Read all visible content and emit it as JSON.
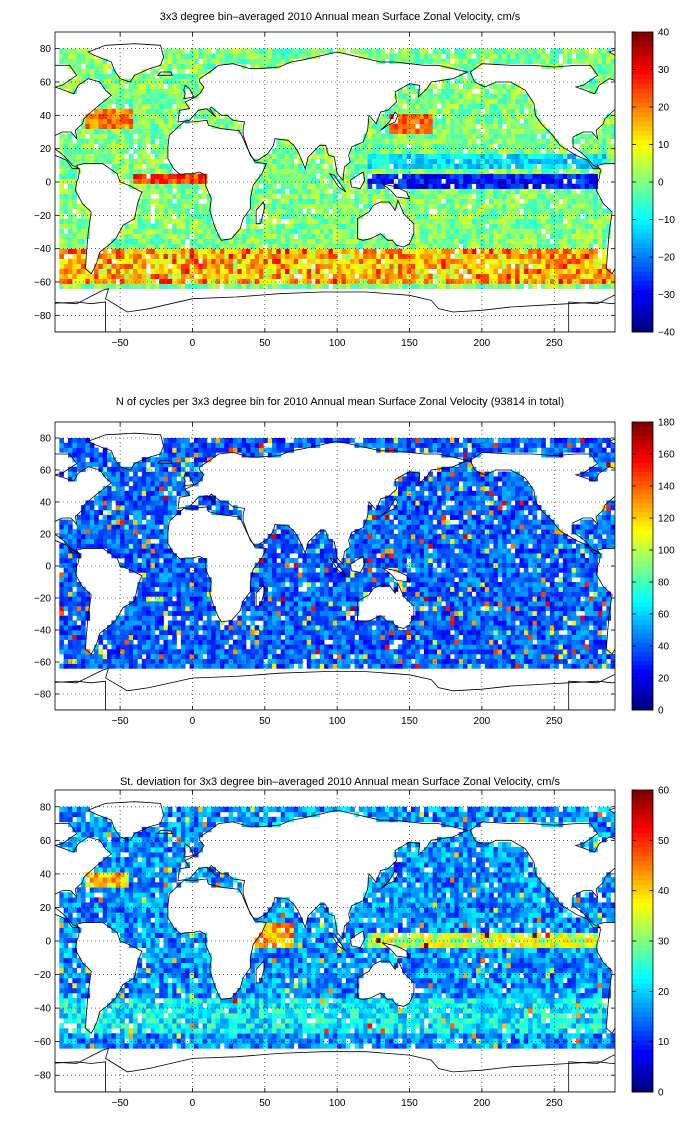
{
  "chart_data": [
    {
      "type": "heatmap",
      "title": "3x3 degree bin–averaged 2010 Annual mean Surface Zonal Velocity, cm/s",
      "xlim": [
        -95,
        292
      ],
      "ylim": [
        -90,
        90
      ],
      "xticks": [
        -50,
        0,
        50,
        100,
        150,
        200,
        250
      ],
      "xtick_labels": [
        "−50",
        "0",
        "50",
        "100",
        "150",
        "200",
        "250"
      ],
      "yticks": [
        80,
        60,
        40,
        20,
        0,
        -20,
        -40,
        -60,
        -80
      ],
      "ytick_labels": [
        "80",
        "60",
        "40",
        "20",
        "0",
        "−20",
        "−40",
        "−60",
        "−80"
      ],
      "clim": [
        -40,
        40
      ],
      "cticks": [
        40,
        30,
        20,
        10,
        0,
        -10,
        -20,
        -30,
        -40
      ],
      "ctick_labels": [
        "40",
        "30",
        "20",
        "10",
        "0",
        "−10",
        "−20",
        "−30",
        "−40"
      ],
      "grid": true,
      "colormap": "jet",
      "bin_size_deg": 3
    },
    {
      "type": "heatmap",
      "title": "N of cycles per 3x3 degree bin for 2010 Annual mean Surface Zonal Velocity (93814 in total)",
      "xlim": [
        -95,
        292
      ],
      "ylim": [
        -90,
        90
      ],
      "xticks": [
        -50,
        0,
        50,
        100,
        150,
        200,
        250
      ],
      "xtick_labels": [
        "−50",
        "0",
        "50",
        "100",
        "150",
        "200",
        "250"
      ],
      "yticks": [
        80,
        60,
        40,
        20,
        0,
        -20,
        -40,
        -60,
        -80
      ],
      "ytick_labels": [
        "80",
        "60",
        "40",
        "20",
        "0",
        "−20",
        "−40",
        "−60",
        "−80"
      ],
      "clim": [
        0,
        180
      ],
      "cticks": [
        180,
        160,
        140,
        120,
        100,
        80,
        60,
        40,
        20,
        0
      ],
      "ctick_labels": [
        "180",
        "160",
        "140",
        "120",
        "100",
        "80",
        "60",
        "40",
        "20",
        "0"
      ],
      "grid": true,
      "colormap": "jet",
      "bin_size_deg": 3
    },
    {
      "type": "heatmap",
      "title": "St. deviation for 3x3 degree bin–averaged 2010 Annual mean Surface Zonal Velocity, cm/s",
      "xlim": [
        -95,
        292
      ],
      "ylim": [
        -90,
        90
      ],
      "xticks": [
        -50,
        0,
        50,
        100,
        150,
        200,
        250
      ],
      "xtick_labels": [
        "−50",
        "0",
        "50",
        "100",
        "150",
        "200",
        "250"
      ],
      "yticks": [
        80,
        60,
        40,
        20,
        0,
        -20,
        -40,
        -60,
        -80
      ],
      "ytick_labels": [
        "80",
        "60",
        "40",
        "20",
        "0",
        "−20",
        "−40",
        "−60",
        "−80"
      ],
      "clim": [
        0,
        60
      ],
      "cticks": [
        60,
        50,
        40,
        30,
        20,
        10,
        0
      ],
      "ctick_labels": [
        "60",
        "50",
        "40",
        "30",
        "20",
        "10",
        "0"
      ],
      "grid": true,
      "colormap": "jet",
      "bin_size_deg": 3
    }
  ]
}
